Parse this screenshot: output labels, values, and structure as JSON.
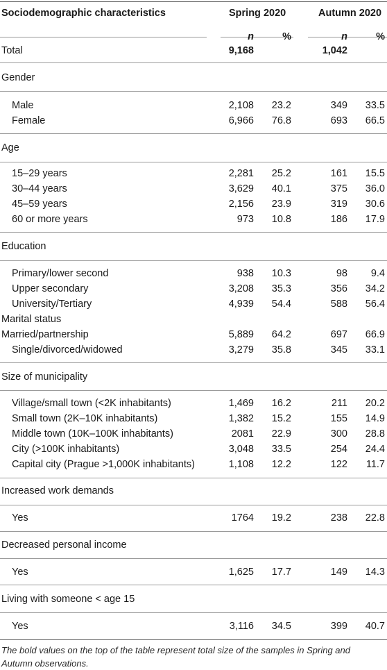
{
  "header": {
    "title": "Sociodemographic characteristics",
    "spring": "Spring 2020",
    "autumn": "Autumn 2020",
    "n": "n",
    "pct": "%"
  },
  "total": {
    "label": "Total",
    "spring_n": "9,168",
    "autumn_n": "1,042"
  },
  "sections": {
    "gender": {
      "label": "Gender",
      "rows": [
        {
          "label": "Male",
          "n1": "2,108",
          "p1": "23.2",
          "n2": "349",
          "p2": "33.5"
        },
        {
          "label": "Female",
          "n1": "6,966",
          "p1": "76.8",
          "n2": "693",
          "p2": "66.5"
        }
      ]
    },
    "age": {
      "label": "Age",
      "rows": [
        {
          "label": "15–29 years",
          "n1": "2,281",
          "p1": "25.2",
          "n2": "161",
          "p2": "15.5"
        },
        {
          "label": "30–44 years",
          "n1": "3,629",
          "p1": "40.1",
          "n2": "375",
          "p2": "36.0"
        },
        {
          "label": "45–59 years",
          "n1": "2,156",
          "p1": "23.9",
          "n2": "319",
          "p2": "30.6"
        },
        {
          "label": "60 or more years",
          "n1": "973",
          "p1": "10.8",
          "n2": "186",
          "p2": "17.9"
        }
      ]
    },
    "education": {
      "label": "Education",
      "rows": [
        {
          "label": "Primary/lower second",
          "n1": "938",
          "p1": "10.3",
          "n2": "98",
          "p2": "9.4"
        },
        {
          "label": "Upper secondary",
          "n1": "3,208",
          "p1": "35.3",
          "n2": "356",
          "p2": "34.2"
        },
        {
          "label": "University/Tertiary",
          "n1": "4,939",
          "p1": "54.4",
          "n2": "588",
          "p2": "56.4"
        }
      ]
    },
    "marital": {
      "label": "Marital status",
      "rows": [
        {
          "label": "Married/partnership",
          "n1": "5,889",
          "p1": "64.2",
          "n2": "697",
          "p2": "66.9"
        },
        {
          "label": "Single/divorced/widowed",
          "n1": "3,279",
          "p1": "35.8",
          "n2": "345",
          "p2": "33.1"
        }
      ]
    },
    "municipality": {
      "label": "Size of municipality",
      "rows": [
        {
          "label": "Village/small town (<2K inhabitants)",
          "n1": "1,469",
          "p1": "16.2",
          "n2": "211",
          "p2": "20.2"
        },
        {
          "label": "Small town (2K–10K inhabitants)",
          "n1": "1,382",
          "p1": "15.2",
          "n2": "155",
          "p2": "14.9"
        },
        {
          "label": "Middle town (10K–100K inhabitants)",
          "n1": "2081",
          "p1": "22.9",
          "n2": "300",
          "p2": "28.8"
        },
        {
          "label": "City (>100K inhabitants)",
          "n1": "3,048",
          "p1": "33.5",
          "n2": "254",
          "p2": "24.4"
        },
        {
          "label": "Capital city (Prague >1,000K inhabitants)",
          "n1": "1,108",
          "p1": "12.2",
          "n2": "122",
          "p2": "11.7"
        }
      ]
    },
    "work": {
      "label": "Increased work demands",
      "rows": [
        {
          "label": "Yes",
          "n1": "1764",
          "p1": "19.2",
          "n2": "238",
          "p2": "22.8"
        }
      ]
    },
    "income": {
      "label": "Decreased personal income",
      "rows": [
        {
          "label": "Yes",
          "n1": "1,625",
          "p1": "17.7",
          "n2": "149",
          "p2": "14.3"
        }
      ]
    },
    "living": {
      "label": "Living with someone < age 15",
      "rows": [
        {
          "label": "Yes",
          "n1": "3,116",
          "p1": "34.5",
          "n2": "399",
          "p2": "40.7"
        }
      ]
    }
  },
  "footnote": "The bold values on the top of the table represent total size of the samples in Spring and Autumn observations."
}
